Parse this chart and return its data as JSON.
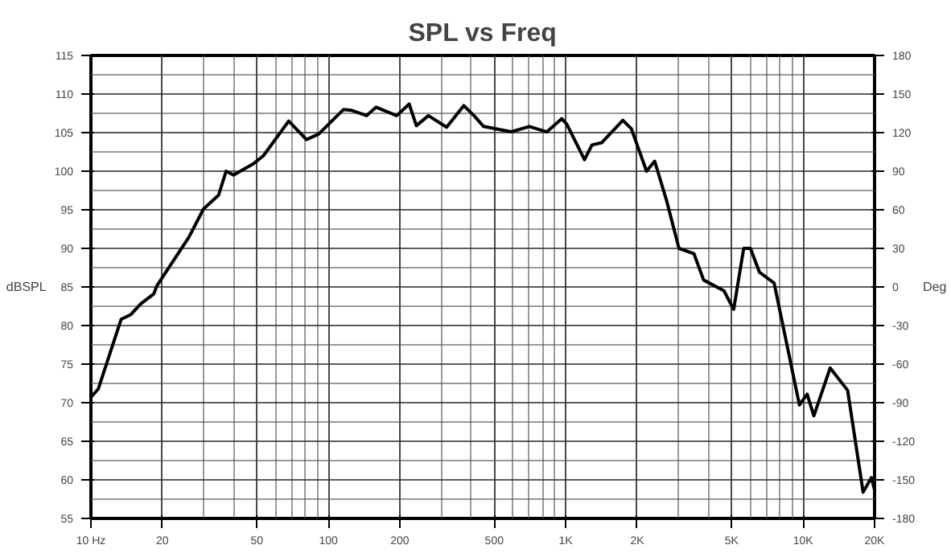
{
  "chart_data": {
    "type": "line",
    "title": "SPL vs Freq",
    "ylabel": "dBSPL",
    "y2label": "Deg",
    "log": "x",
    "grid": true,
    "marker": "none",
    "line_style": "solid",
    "xlim": [
      10,
      20000
    ],
    "ylim": [
      55,
      115
    ],
    "y2lim": [
      -180,
      180
    ],
    "xticks": [
      {
        "value": 10,
        "label": "10 Hz"
      },
      20,
      50,
      100,
      200,
      500,
      {
        "value": 1000,
        "label": "1K"
      },
      {
        "value": 2000,
        "label": "2K"
      },
      {
        "value": 5000,
        "label": "5K"
      },
      {
        "value": 10000,
        "label": "10K"
      },
      {
        "value": 20000,
        "label": "20K"
      }
    ],
    "yticks": [
      55,
      60,
      65,
      70,
      75,
      80,
      85,
      90,
      95,
      100,
      105,
      110,
      115
    ],
    "y2ticks": [
      -180,
      -150,
      -120,
      -90,
      -60,
      -30,
      0,
      30,
      60,
      90,
      120,
      150,
      180
    ],
    "series": [
      {
        "color": "#000000",
        "x": [
          10,
          10.75,
          13.4,
          14.7,
          16.2,
          18.4,
          19,
          25.8,
          29.8,
          34.5,
          37.1,
          39.9,
          48.5,
          53.3,
          68.1,
          80.9,
          91,
          116,
          125,
          145,
          159,
          194,
          219,
          235,
          264,
          315,
          372,
          411,
          451,
          590,
          703,
          833,
          962,
          1010,
          1200,
          1290,
          1420,
          1740,
          1890,
          2190,
          2370,
          2660,
          3000,
          3470,
          3810,
          4640,
          5100,
          5620,
          6000,
          6550,
          7550,
          9650,
          10400,
          11100,
          13000,
          15400,
          17900,
          19400,
          20000
        ],
        "values": [
          70.7,
          71.8,
          80.8,
          81.4,
          82.8,
          84.1,
          85.2,
          91.4,
          95.1,
          96.9,
          100,
          99.5,
          101,
          102,
          106.5,
          104.1,
          104.8,
          108,
          107.9,
          107.2,
          108.3,
          107.2,
          108.7,
          105.9,
          107.2,
          105.7,
          108.5,
          107.2,
          105.8,
          105.1,
          105.8,
          105.1,
          106.8,
          106.1,
          101.5,
          103.4,
          103.7,
          106.6,
          105.5,
          100,
          101.3,
          96.2,
          90,
          89.3,
          85.9,
          84.5,
          82.1,
          90,
          90,
          86.9,
          85.5,
          69.7,
          71.1,
          68.3,
          74.5,
          71.6,
          58.4,
          60.3,
          58.7
        ]
      }
    ]
  }
}
